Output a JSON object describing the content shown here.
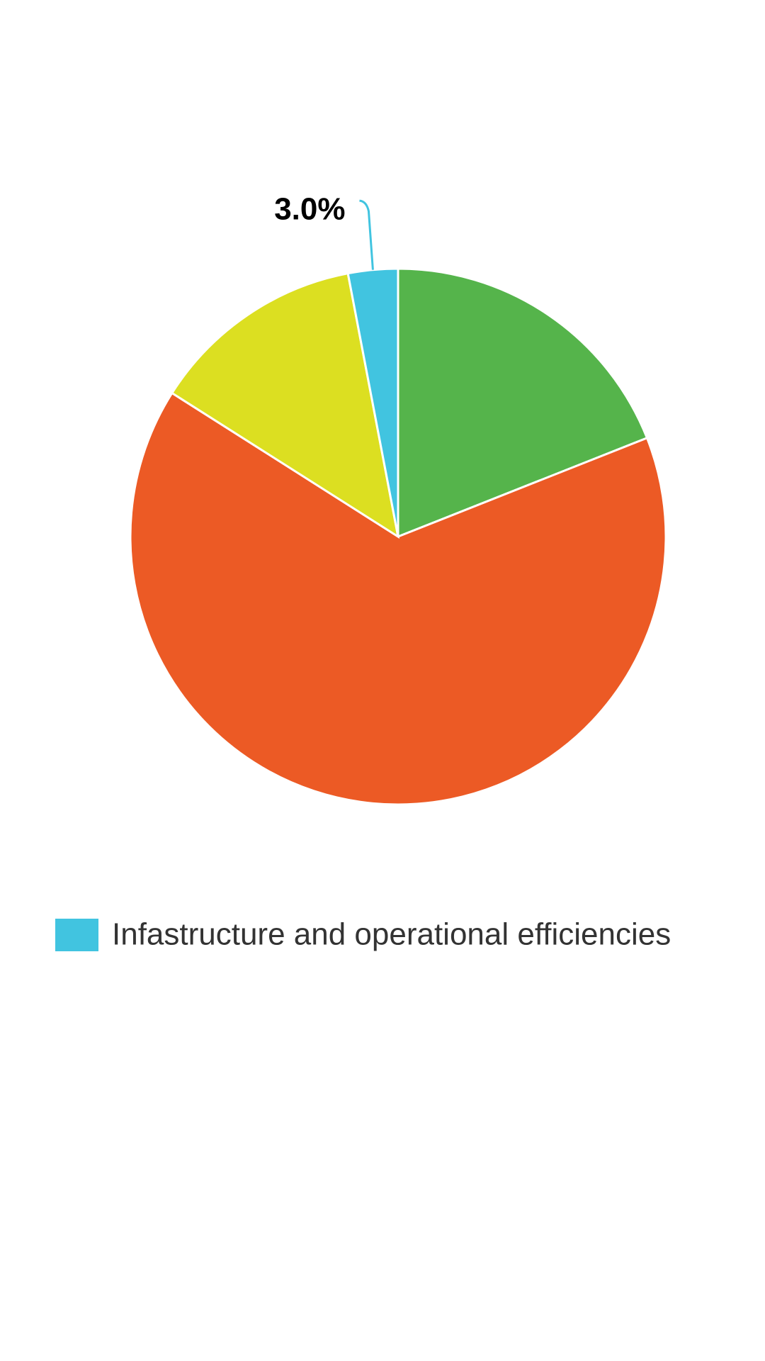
{
  "chart_data": {
    "type": "pie",
    "categories": [
      null,
      null,
      null,
      "Infastructure and operational efficiencies"
    ],
    "values": [
      19,
      65,
      13,
      3
    ],
    "value_labels": [
      null,
      null,
      null,
      "3.0%"
    ],
    "colors": [
      "#55b44b",
      "#ec5a25",
      "#dcdf21",
      "#41c4e0"
    ],
    "legend": "bottom-left"
  }
}
